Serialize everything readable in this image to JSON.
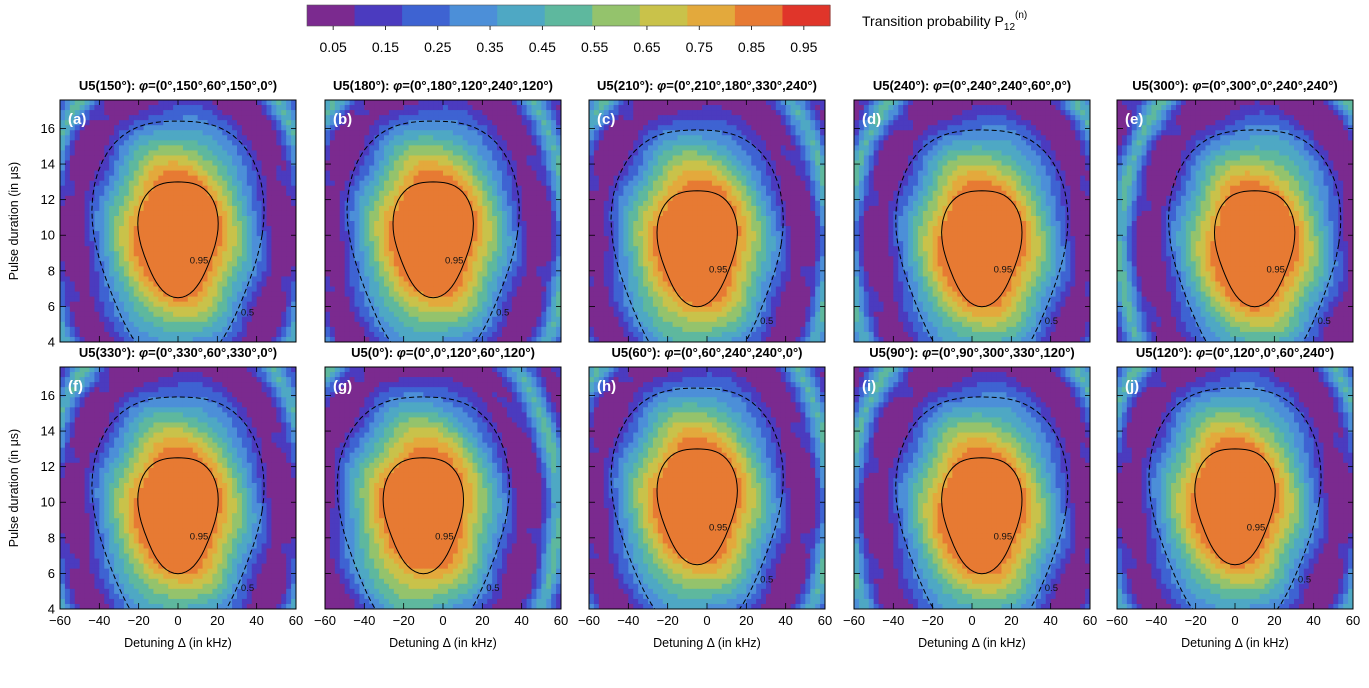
{
  "chart_data": {
    "type": "heatmap",
    "colorbar": {
      "title": "Transition probability P",
      "title_sub": "12",
      "title_sup": "(n)",
      "levels": [
        0.0,
        0.1,
        0.2,
        0.3,
        0.4,
        0.5,
        0.6,
        0.7,
        0.8,
        0.9,
        1.0
      ],
      "tick_values": [
        0.05,
        0.15,
        0.25,
        0.35,
        0.45,
        0.55,
        0.65,
        0.75,
        0.85,
        0.95
      ],
      "tick_labels": [
        "0.05",
        "0.15",
        "0.25",
        "0.35",
        "0.45",
        "0.55",
        "0.65",
        "0.75",
        "0.85",
        "0.95"
      ],
      "colors": [
        "#7b2a8f",
        "#4b3bbf",
        "#3e63d2",
        "#4c8fd8",
        "#4ea8c4",
        "#5eb89e",
        "#94c36c",
        "#c9c24a",
        "#e3a93c",
        "#e77a33",
        "#e0352a"
      ]
    },
    "xlabel": "Detuning Δ (in kHz)",
    "ylabel": "Pulse duration (in μs)",
    "xlim": [
      -60,
      60
    ],
    "ylim": [
      4,
      17.6
    ],
    "xticks": [
      -60,
      -40,
      -20,
      0,
      20,
      40,
      60
    ],
    "yticks": [
      4,
      6,
      8,
      10,
      12,
      14,
      16
    ],
    "contour_levels": [
      "0.5",
      "0.95"
    ],
    "panels": [
      {
        "label": "(a)",
        "title_pre": "U5(150°): ",
        "phi": "=(0°,150°,60°,150°,0°)",
        "peak": {
          "x": 0,
          "y": 10
        }
      },
      {
        "label": "(b)",
        "title_pre": "U5(180°): ",
        "phi": "=(0°,180°,120°,240°,120°)",
        "peak": {
          "x": -5,
          "y": 10
        }
      },
      {
        "label": "(c)",
        "title_pre": "U5(210°): ",
        "phi": "=(0°,210°,180°,330°,240°)",
        "peak": {
          "x": -5,
          "y": 9.5
        }
      },
      {
        "label": "(d)",
        "title_pre": "U5(240°): ",
        "phi": "=(0°,240°,240°,60°,0°)",
        "peak": {
          "x": 5,
          "y": 9.5
        }
      },
      {
        "label": "(e)",
        "title_pre": "U5(300°): ",
        "phi": "=(0°,300°,0°,240°,240°)",
        "peak": {
          "x": 10,
          "y": 9.5
        }
      },
      {
        "label": "(f)",
        "title_pre": "U5(330°): ",
        "phi": "=(0°,330°,60°,330°,0°)",
        "peak": {
          "x": 0,
          "y": 9.5
        }
      },
      {
        "label": "(g)",
        "title_pre": "U5(0°): ",
        "phi": "=(0°,0°,120°,60°,120°)",
        "peak": {
          "x": -10,
          "y": 9.5
        }
      },
      {
        "label": "(h)",
        "title_pre": "U5(60°): ",
        "phi": "=(0°,60°,240°,240°,0°)",
        "peak": {
          "x": -5,
          "y": 10
        }
      },
      {
        "label": "(i)",
        "title_pre": "U5(90°): ",
        "phi": "=(0°,90°,300°,330°,120°)",
        "peak": {
          "x": 5,
          "y": 9.5
        }
      },
      {
        "label": "(j)",
        "title_pre": "U5(120°): ",
        "phi": "=(0°,120°,0°,60°,240°)",
        "peak": {
          "x": 0,
          "y": 10
        }
      }
    ]
  }
}
